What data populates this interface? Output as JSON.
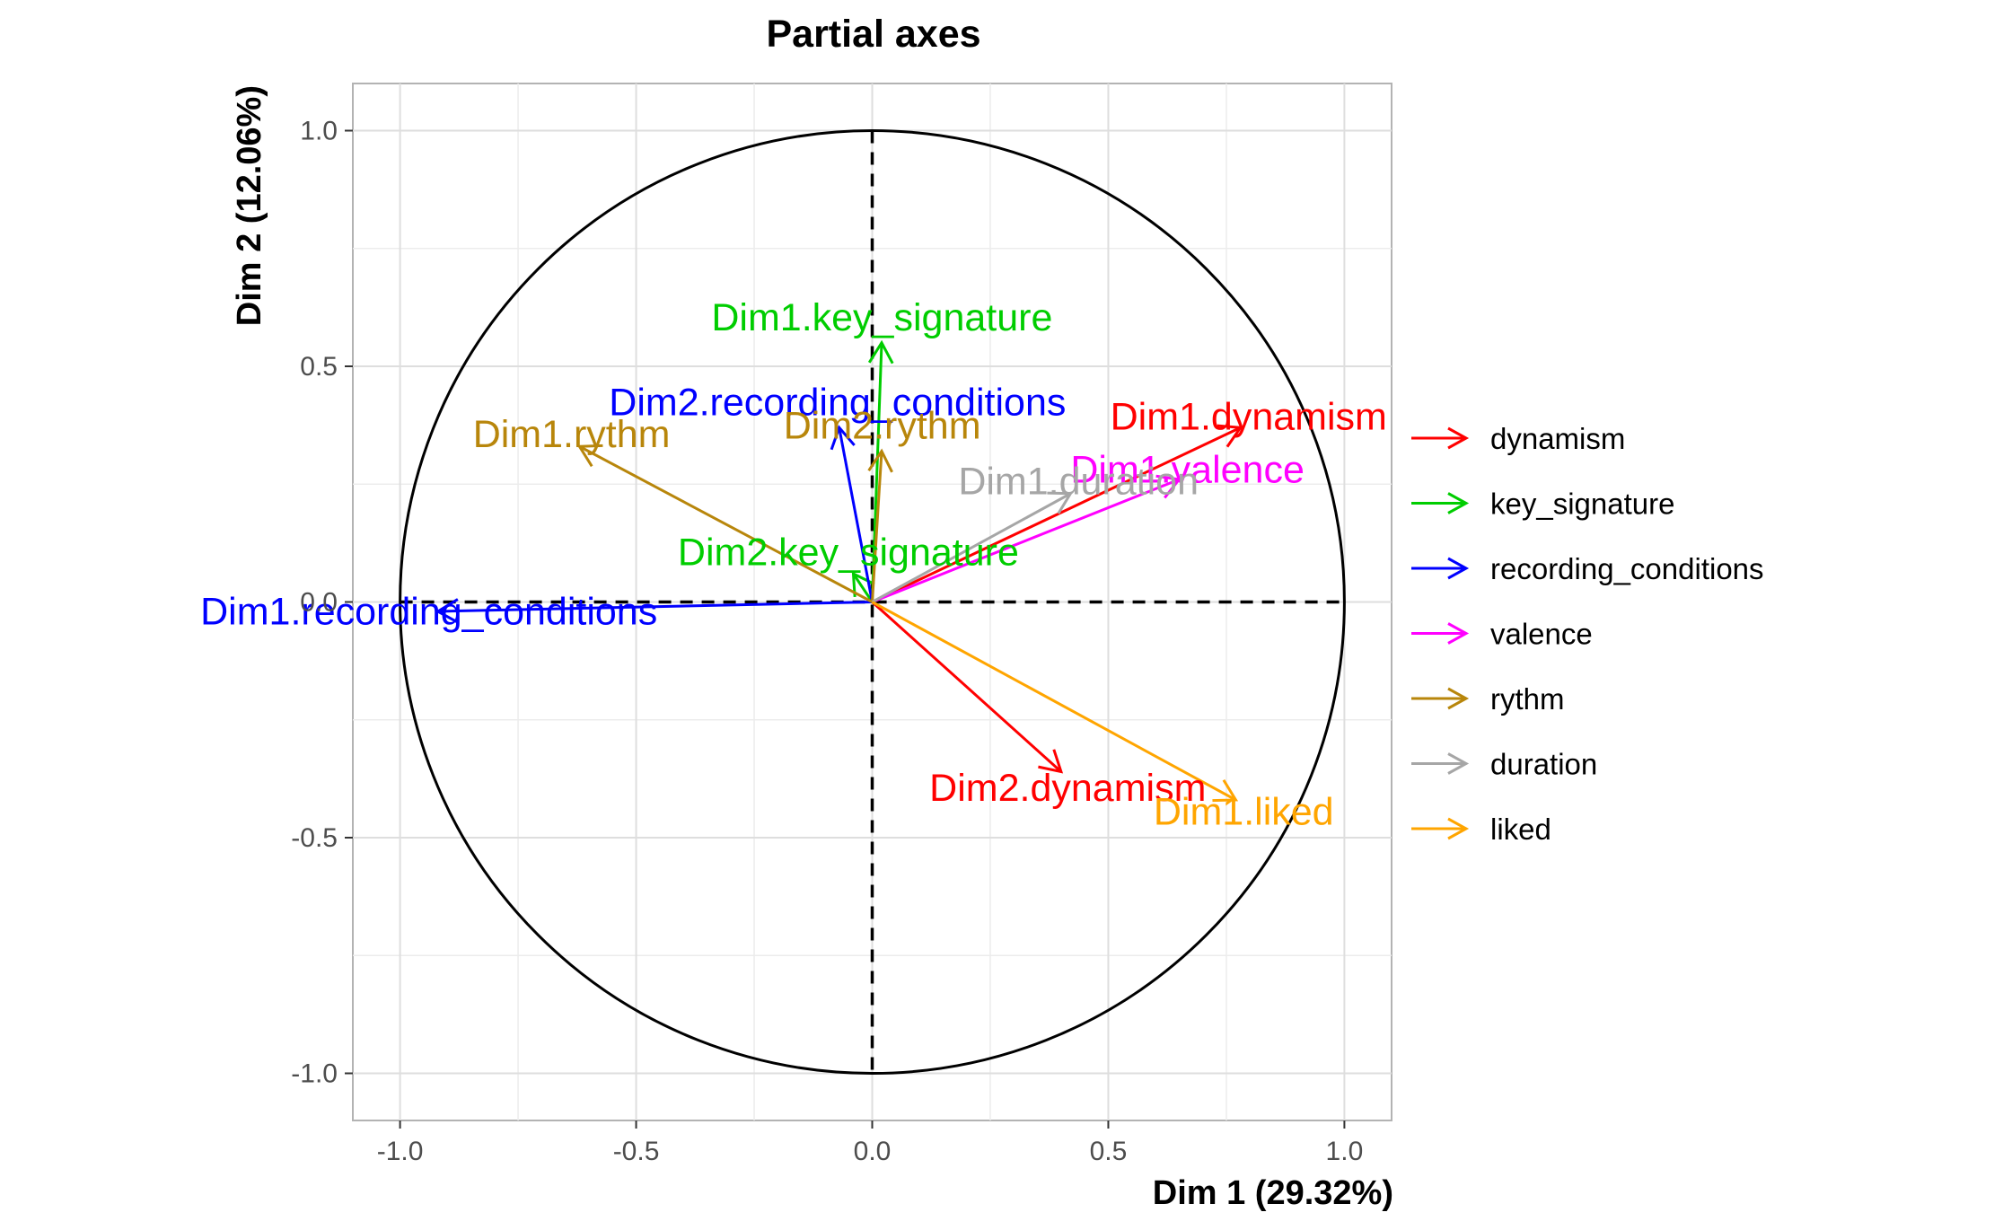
{
  "chart_data": {
    "type": "scatter",
    "title": "Partial axes",
    "xlabel": "Dim 1 (29.32%)",
    "ylabel": "Dim 2 (12.06%)",
    "xlim": [
      -1.1,
      1.1
    ],
    "ylim": [
      -1.1,
      1.1
    ],
    "x_ticks": [
      -1.0,
      -0.5,
      0.0,
      0.5,
      1.0
    ],
    "x_tick_labels": [
      "-1.0",
      "-0.5",
      "0.0",
      "0.5",
      "1.0"
    ],
    "y_ticks": [
      -1.0,
      -0.5,
      0.0,
      0.5,
      1.0
    ],
    "y_tick_labels": [
      "-1.0",
      "-0.5",
      "0.0",
      "0.5",
      "1.0"
    ],
    "grid": true,
    "unit_circle": true,
    "legend_position": "right",
    "groups": [
      {
        "name": "dynamism",
        "color": "#ff0000"
      },
      {
        "name": "key_signature",
        "color": "#00cd00"
      },
      {
        "name": "recording_conditions",
        "color": "#0000ff"
      },
      {
        "name": "valence",
        "color": "#ff00ff"
      },
      {
        "name": "rythm",
        "color": "#b8860b"
      },
      {
        "name": "duration",
        "color": "#a6a6a6"
      },
      {
        "name": "liked",
        "color": "#ffa500"
      }
    ],
    "arrows": [
      {
        "label": "Dim1.dynamism",
        "group": "dynamism",
        "x": 0.78,
        "y": 0.37
      },
      {
        "label": "Dim2.dynamism",
        "group": "dynamism",
        "x": 0.4,
        "y": -0.36
      },
      {
        "label": "Dim1.key_signature",
        "group": "key_signature",
        "x": 0.02,
        "y": 0.55
      },
      {
        "label": "Dim2.key_signature",
        "group": "key_signature",
        "x": -0.04,
        "y": 0.06
      },
      {
        "label": "Dim1.recording_conditions",
        "group": "recording_conditions",
        "x": -0.92,
        "y": -0.02
      },
      {
        "label": "Dim2.recording_conditions",
        "group": "recording_conditions",
        "x": -0.07,
        "y": 0.37
      },
      {
        "label": "Dim1.valence",
        "group": "valence",
        "x": 0.65,
        "y": 0.26
      },
      {
        "label": "Dim1.rythm",
        "group": "rythm",
        "x": -0.62,
        "y": 0.33
      },
      {
        "label": "Dim2.rythm",
        "group": "rythm",
        "x": 0.02,
        "y": 0.32
      },
      {
        "label": "Dim1.duration",
        "group": "duration",
        "x": 0.42,
        "y": 0.23
      },
      {
        "label": "Dim1.liked",
        "group": "liked",
        "x": 0.77,
        "y": -0.42
      }
    ]
  }
}
